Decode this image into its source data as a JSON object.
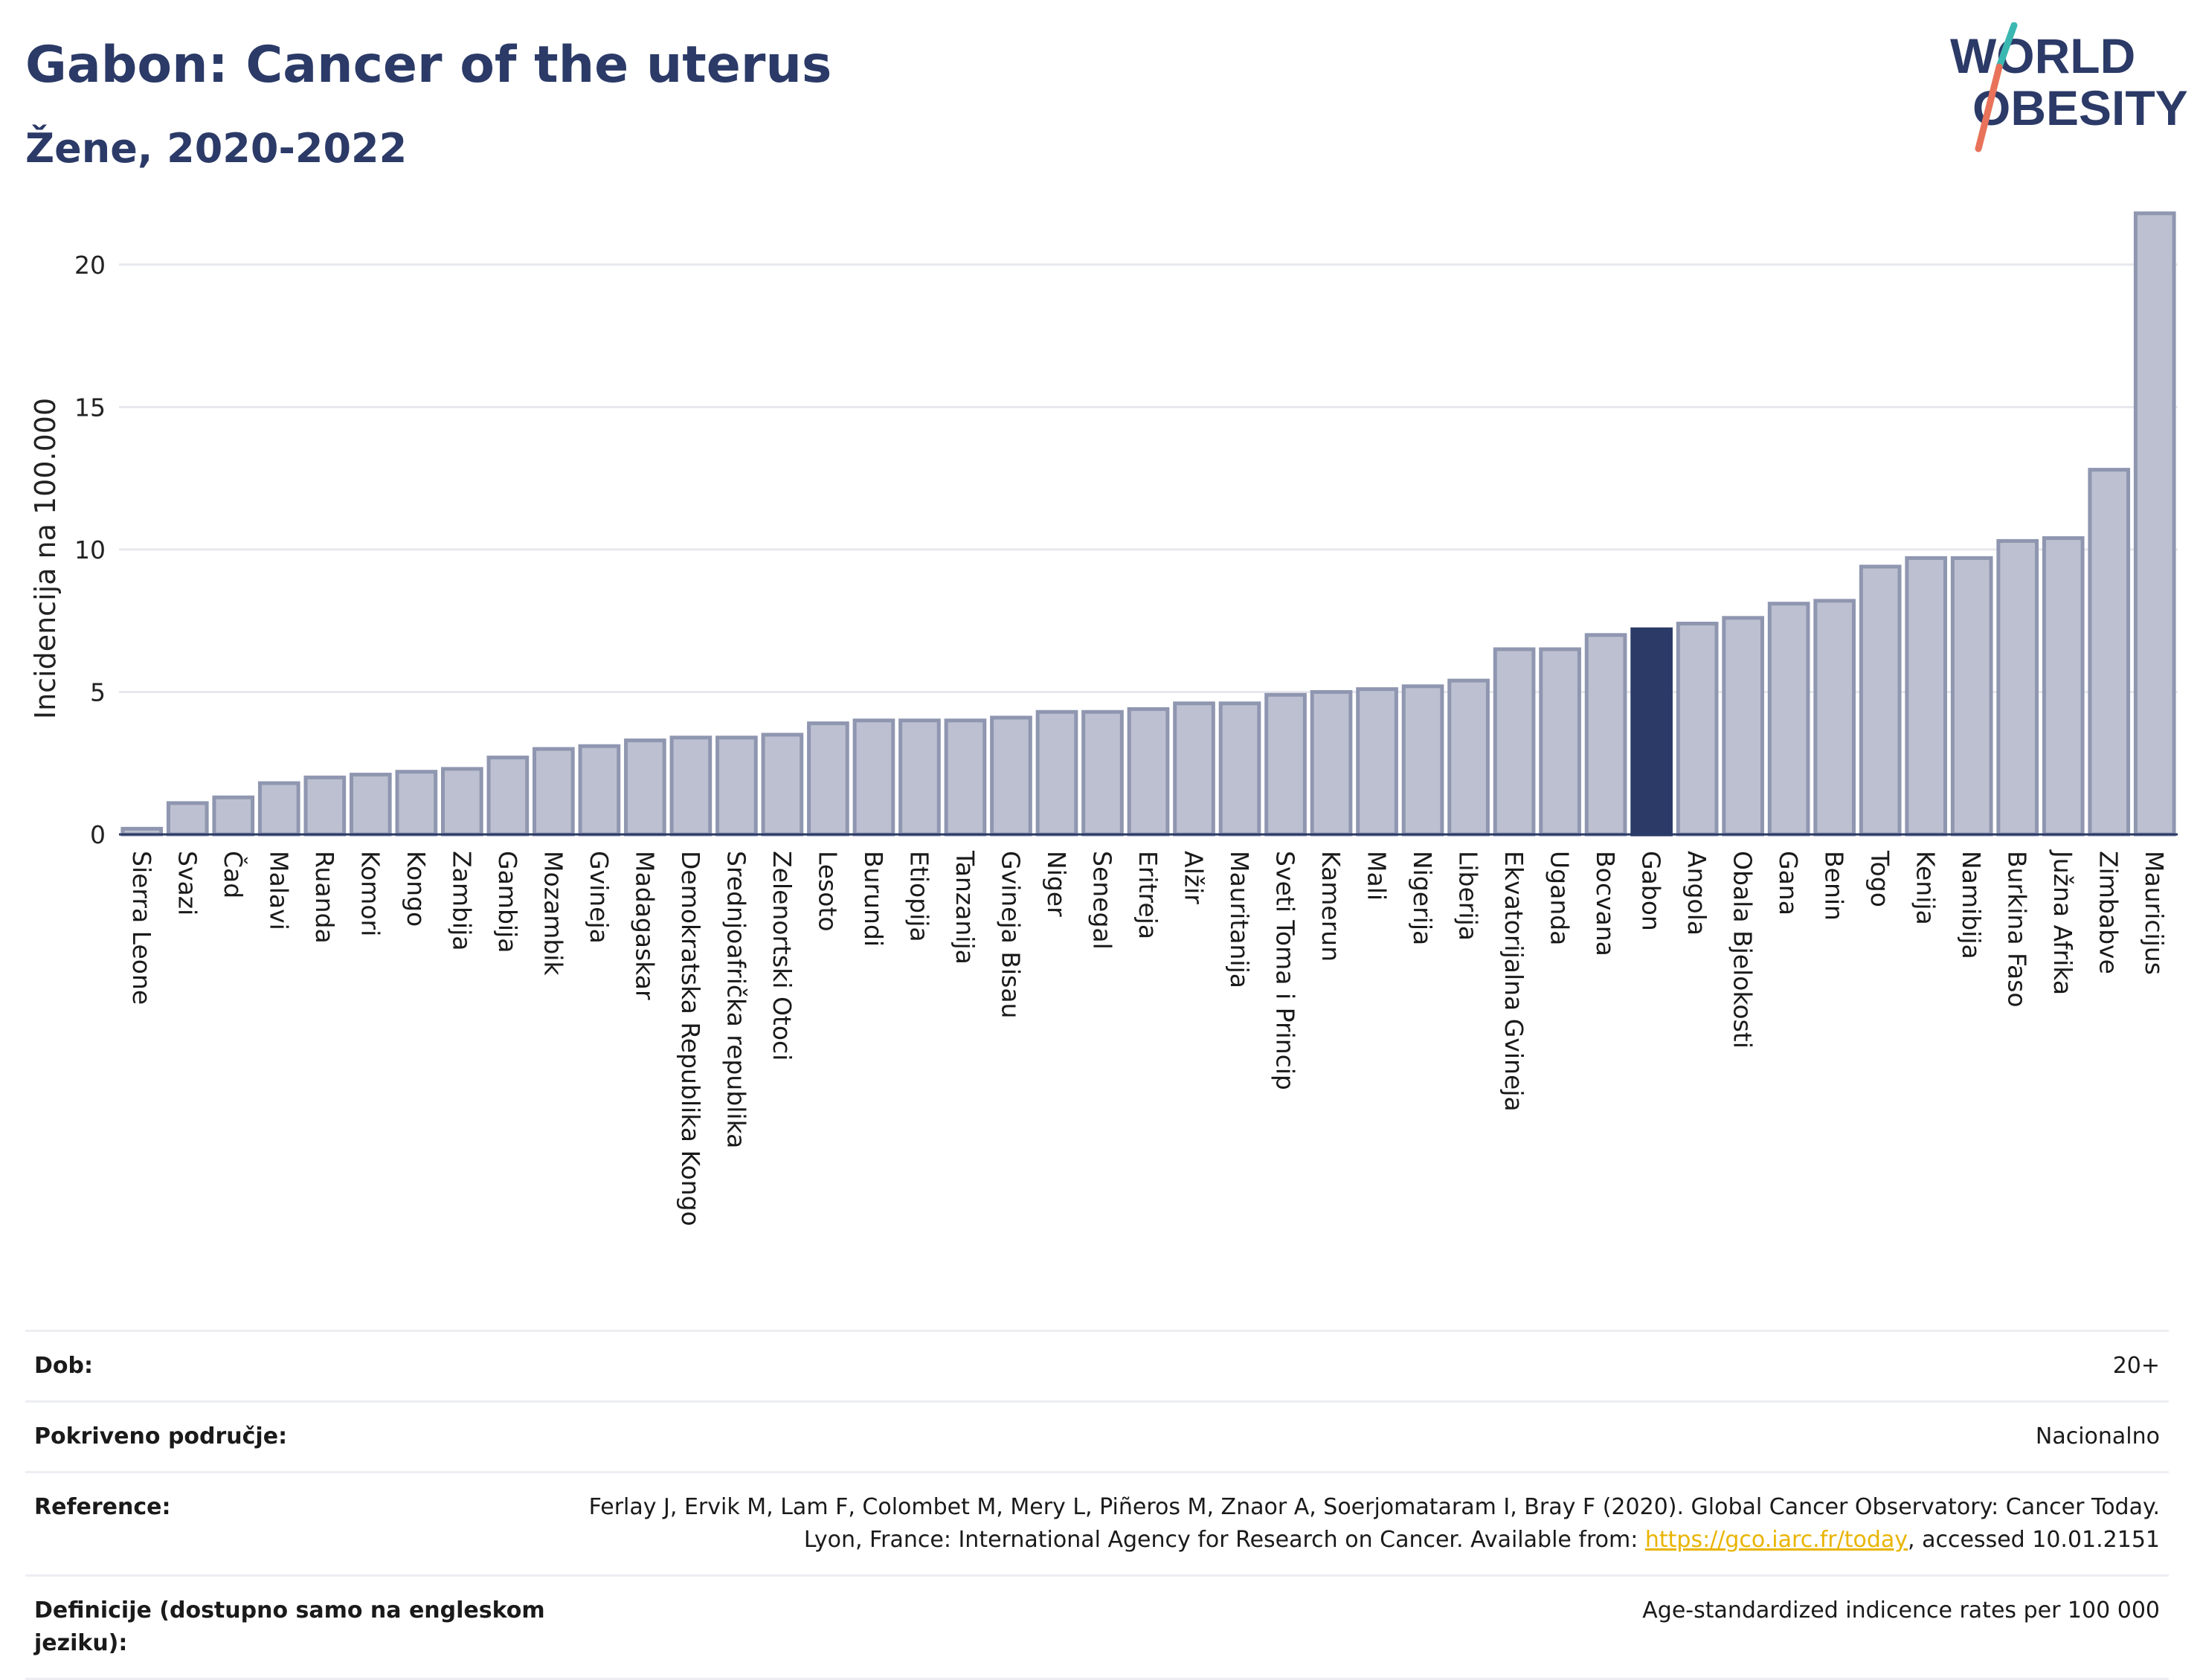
{
  "header": {
    "title": "Gabon: Cancer of the uterus",
    "subtitle": "Žene, 2020-2022"
  },
  "logo": {
    "line1": "WORLD",
    "line2": "OBESITY",
    "colors": {
      "text": "#2b3a67",
      "slash_teal": "#3bb7b1",
      "slash_red": "#e8735a"
    }
  },
  "colors": {
    "bar": "#bcc0d0",
    "bar_border": "#8f96b0",
    "highlight": "#2b3a67",
    "grid": "#e6e8ee",
    "axis": "#2b3a67"
  },
  "chart_data": {
    "type": "bar",
    "ylabel": "Incidencija na 100.000",
    "ylim": [
      0,
      22.5
    ],
    "yticks": [
      0,
      5,
      10,
      15,
      20
    ],
    "grid": true,
    "highlight": "Gabon",
    "categories": [
      "Sierra Leone",
      "Svazi",
      "Čad",
      "Malavi",
      "Ruanda",
      "Komori",
      "Kongo",
      "Zambija",
      "Gambija",
      "Mozambik",
      "Gvineja",
      "Madagaskar",
      "Demokratska Republika Kongo",
      "Srednjoafrička republika",
      "Zelenortski Otoci",
      "Lesoto",
      "Burundi",
      "Etiopija",
      "Tanzanija",
      "Gvineja Bisau",
      "Niger",
      "Senegal",
      "Eritreja",
      "Alžir",
      "Mauritanija",
      "Sveti Toma i Princip",
      "Kamerun",
      "Mali",
      "Nigerija",
      "Liberija",
      "Ekvatorijalna Gvineja",
      "Uganda",
      "Bocvana",
      "Gabon",
      "Angola",
      "Obala Bjelokosti",
      "Gana",
      "Benin",
      "Togo",
      "Kenija",
      "Namibija",
      "Burkina Faso",
      "Južna Afrika",
      "Zimbabve",
      "Mauricijus"
    ],
    "values": [
      0.2,
      1.1,
      1.3,
      1.8,
      2.0,
      2.1,
      2.2,
      2.3,
      2.7,
      3.0,
      3.1,
      3.3,
      3.4,
      3.4,
      3.5,
      3.9,
      4.0,
      4.0,
      4.0,
      4.1,
      4.3,
      4.3,
      4.4,
      4.6,
      4.6,
      4.9,
      5.0,
      5.1,
      5.2,
      5.4,
      6.5,
      6.5,
      7.0,
      7.2,
      7.4,
      7.6,
      8.1,
      8.2,
      9.4,
      9.7,
      9.7,
      10.3,
      10.4,
      12.8,
      21.8
    ]
  },
  "meta": [
    {
      "key": "Dob:",
      "value": "20+"
    },
    {
      "key": "Pokriveno područje:",
      "value": "Nacionalno"
    },
    {
      "key": "Reference:",
      "value_before": "Ferlay J, Ervik M, Lam F, Colombet M, Mery L, Piñeros M, Znaor A, Soerjomataram I, Bray F (2020). Global Cancer Observatory: Cancer Today. Lyon, France: International Agency for Research on Cancer. Available from: ",
      "link": "https://gco.iarc.fr/today",
      "value_after": ", accessed 10.01.2151"
    },
    {
      "key": "Definicije (dostupno samo na engleskom jeziku):",
      "value": "Age-standardized indicence rates per 100 000"
    }
  ]
}
